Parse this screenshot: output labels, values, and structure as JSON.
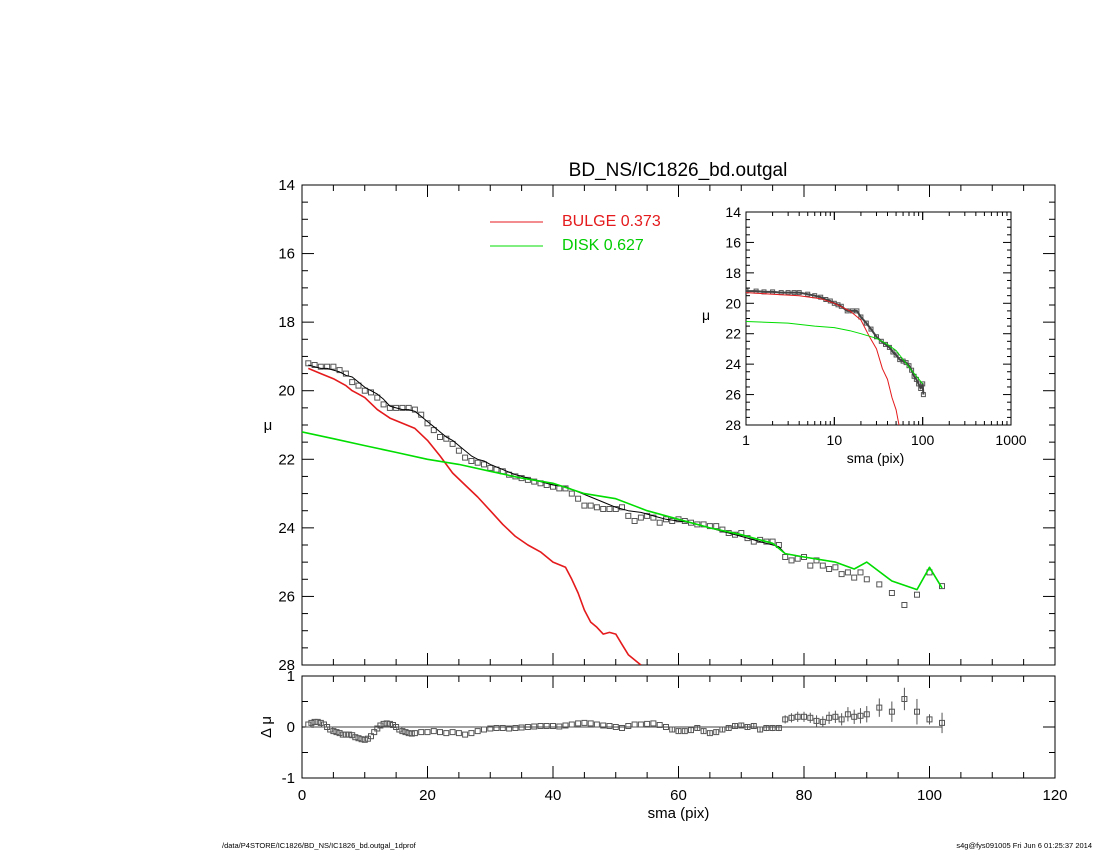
{
  "chart_data": {
    "title": "BD_NS/IC1826_bd.outgal",
    "footer_left": "/data/P4STORE/IC1826/BD_NS/IC1826_bd.outgal_1dprof",
    "footer_right": "s4g@fys091005  Fri Jun  6 01:25:37 2014",
    "colors": {
      "bulge": "#e41a1c",
      "disk": "#00dd00",
      "data": "#555555",
      "total": "#000000"
    },
    "main": {
      "type": "line",
      "xlabel": "sma (pix)",
      "ylabel": "μ",
      "xlim": [
        0,
        120
      ],
      "ylim": [
        28,
        14
      ],
      "xticks": [
        "0",
        "20",
        "40",
        "60",
        "80",
        "100",
        "120"
      ],
      "yticks": [
        "14",
        "16",
        "18",
        "20",
        "22",
        "24",
        "26",
        "28"
      ],
      "legend": [
        {
          "label": "BULGE  0.373",
          "series": "bulge"
        },
        {
          "label": "DISK  0.627",
          "series": "disk"
        }
      ],
      "series": [
        {
          "name": "BULGE",
          "x": [
            1,
            3,
            5,
            7,
            8,
            9,
            10,
            12,
            14,
            16,
            18,
            20,
            22,
            24,
            26,
            28,
            30,
            32,
            34,
            36,
            38,
            40,
            42,
            43,
            44,
            45,
            46,
            47,
            48,
            49,
            50,
            51,
            52,
            53,
            54
          ],
          "y": [
            19.35,
            19.5,
            19.65,
            19.85,
            20.0,
            20.1,
            20.2,
            20.55,
            20.8,
            20.95,
            21.1,
            21.45,
            21.9,
            22.4,
            22.75,
            23.1,
            23.5,
            23.9,
            24.25,
            24.5,
            24.7,
            25.0,
            25.15,
            25.5,
            25.9,
            26.4,
            26.75,
            26.9,
            27.1,
            27.05,
            27.1,
            27.4,
            27.7,
            27.85,
            28.0
          ]
        },
        {
          "name": "DISK",
          "x": [
            0,
            5,
            10,
            15,
            20,
            25,
            30,
            35,
            40,
            45,
            50,
            55,
            60,
            65,
            70,
            75,
            77,
            80,
            85,
            88,
            90,
            94,
            98,
            100,
            102
          ],
          "y": [
            21.2,
            21.4,
            21.6,
            21.8,
            22.0,
            22.15,
            22.35,
            22.55,
            22.7,
            23.0,
            23.15,
            23.5,
            23.75,
            24.0,
            24.2,
            24.45,
            24.75,
            24.85,
            25.0,
            25.2,
            25.0,
            25.55,
            25.8,
            25.15,
            25.75
          ]
        },
        {
          "name": "TOTAL",
          "x": [
            1,
            2,
            3,
            4,
            5,
            6,
            7,
            8,
            9,
            10,
            11,
            12,
            13,
            14,
            15,
            16,
            17,
            18,
            19,
            20,
            21,
            22,
            23,
            24,
            25,
            26,
            27,
            28,
            29,
            30,
            32,
            34,
            36,
            38,
            40,
            42,
            44,
            46,
            48,
            50,
            52,
            54,
            56,
            58,
            60,
            62,
            64,
            66,
            68,
            70,
            72,
            74,
            76,
            77,
            80,
            85,
            88,
            90,
            94,
            98,
            100,
            102
          ],
          "y": [
            19.25,
            19.3,
            19.35,
            19.35,
            19.4,
            19.45,
            19.55,
            19.6,
            19.75,
            19.9,
            20.0,
            20.1,
            20.25,
            20.45,
            20.5,
            20.55,
            20.55,
            20.6,
            20.75,
            20.9,
            21.05,
            21.2,
            21.35,
            21.45,
            21.6,
            21.75,
            21.9,
            22.0,
            22.05,
            22.15,
            22.3,
            22.45,
            22.55,
            22.65,
            22.75,
            22.8,
            22.95,
            23.1,
            23.25,
            23.4,
            23.5,
            23.55,
            23.65,
            23.75,
            23.8,
            23.85,
            23.95,
            24.05,
            24.15,
            24.25,
            24.35,
            24.45,
            24.55,
            24.75,
            24.85,
            25.0,
            25.2,
            25.0,
            25.55,
            25.8,
            25.15,
            25.75
          ]
        },
        {
          "name": "DATA",
          "x": [
            1,
            2,
            3,
            4,
            5,
            6,
            7,
            8,
            9,
            10,
            11,
            12,
            13,
            14,
            15,
            16,
            17,
            18,
            19,
            20,
            21,
            22,
            23,
            24,
            25,
            26,
            27,
            28,
            29,
            30,
            31,
            32,
            33,
            34,
            35,
            36,
            37,
            38,
            39,
            40,
            41,
            42,
            43,
            44,
            45,
            46,
            47,
            48,
            49,
            50,
            51,
            52,
            53,
            54,
            55,
            56,
            57,
            58,
            59,
            60,
            61,
            62,
            63,
            64,
            65,
            66,
            67,
            68,
            69,
            70,
            71,
            72,
            73,
            74,
            75,
            76,
            77,
            78,
            79,
            80,
            81,
            82,
            83,
            84,
            85,
            86,
            87,
            88,
            89,
            90,
            92,
            94,
            96,
            98,
            100,
            102
          ],
          "y": [
            19.2,
            19.25,
            19.3,
            19.3,
            19.3,
            19.4,
            19.5,
            19.75,
            19.85,
            20.0,
            20.05,
            20.2,
            20.4,
            20.5,
            20.5,
            20.5,
            20.5,
            20.55,
            20.7,
            20.95,
            21.15,
            21.35,
            21.4,
            21.55,
            21.75,
            21.95,
            22.05,
            22.1,
            22.15,
            22.25,
            22.3,
            22.35,
            22.45,
            22.5,
            22.55,
            22.6,
            22.65,
            22.7,
            22.75,
            22.8,
            22.85,
            22.85,
            23.0,
            23.15,
            23.35,
            23.35,
            23.4,
            23.45,
            23.45,
            23.45,
            23.4,
            23.65,
            23.8,
            23.7,
            23.65,
            23.7,
            23.85,
            23.75,
            23.8,
            23.75,
            23.8,
            23.85,
            23.9,
            23.9,
            23.95,
            23.95,
            24.05,
            24.15,
            24.2,
            24.15,
            24.3,
            24.4,
            24.35,
            24.4,
            24.4,
            24.5,
            24.85,
            24.95,
            24.9,
            24.85,
            25.1,
            24.95,
            25.1,
            25.2,
            25.15,
            25.35,
            25.3,
            25.45,
            25.3,
            25.5,
            25.65,
            25.9,
            26.25,
            25.95,
            25.3,
            25.7
          ]
        }
      ]
    },
    "inset": {
      "type": "line",
      "xlabel": "sma (pix)",
      "ylabel": "μ",
      "xscale": "log",
      "xlim": [
        1,
        1000
      ],
      "ylim": [
        28,
        14
      ],
      "xticks": [
        "1",
        "10",
        "100",
        "1000"
      ],
      "yticks": [
        "14",
        "16",
        "18",
        "20",
        "22",
        "24",
        "26",
        "28"
      ],
      "series": [
        {
          "name": "BULGE",
          "x": [
            1,
            2,
            4,
            7,
            10,
            15,
            20,
            25,
            30,
            35,
            40,
            45,
            50,
            54
          ],
          "y": [
            19.3,
            19.4,
            19.5,
            19.7,
            20.0,
            20.5,
            21.1,
            22.2,
            23.0,
            24.3,
            25.0,
            26.2,
            27.0,
            28.0
          ]
        },
        {
          "name": "DISK",
          "x": [
            1,
            3,
            6,
            10,
            15,
            20,
            30,
            40,
            50,
            70,
            100
          ],
          "y": [
            21.2,
            21.3,
            21.5,
            21.6,
            21.8,
            22.0,
            22.3,
            22.7,
            23.1,
            24.2,
            25.3
          ]
        },
        {
          "name": "DATA",
          "x": [
            1,
            1.3,
            1.6,
            2,
            2.5,
            3,
            3.5,
            4,
            5,
            6,
            7,
            8,
            9,
            10,
            11,
            12,
            14,
            16,
            18,
            20,
            23,
            26,
            30,
            34,
            38,
            42,
            46,
            50,
            55,
            60,
            65,
            70,
            75,
            80,
            85,
            90,
            95,
            100,
            102
          ],
          "y": [
            19.2,
            19.2,
            19.25,
            19.25,
            19.3,
            19.3,
            19.3,
            19.3,
            19.4,
            19.5,
            19.6,
            19.75,
            19.85,
            20.0,
            20.1,
            20.2,
            20.5,
            20.5,
            20.5,
            20.9,
            21.3,
            21.7,
            22.2,
            22.5,
            22.7,
            22.9,
            23.2,
            23.4,
            23.7,
            23.8,
            23.9,
            24.1,
            24.4,
            24.8,
            25.0,
            25.3,
            25.6,
            25.3,
            26.0
          ]
        }
      ]
    },
    "residual": {
      "type": "scatter",
      "xlabel": "sma (pix)",
      "ylabel": "Δ μ",
      "xlim": [
        0,
        120
      ],
      "ylim": [
        -1,
        1
      ],
      "yticks": [
        "1",
        "0",
        "-1"
      ],
      "x": [
        1,
        1.5,
        2,
        2.5,
        3,
        3.5,
        4,
        4.5,
        5,
        5.5,
        6,
        6.5,
        7,
        7.5,
        8,
        8.5,
        9,
        9.5,
        10,
        10.5,
        11,
        11.5,
        12,
        12.5,
        13,
        13.5,
        14,
        14.5,
        15,
        15.5,
        16,
        16.5,
        17,
        17.5,
        18,
        19,
        20,
        21,
        22,
        23,
        24,
        25,
        26,
        27,
        28,
        29,
        30,
        31,
        32,
        33,
        34,
        35,
        36,
        37,
        38,
        39,
        40,
        41,
        42,
        43,
        44,
        45,
        46,
        47,
        48,
        49,
        50,
        51,
        52,
        53,
        54,
        55,
        56,
        57,
        58,
        59,
        60,
        61,
        62,
        63,
        64,
        65,
        66,
        67,
        68,
        69,
        70,
        71,
        72,
        73,
        74,
        75,
        76,
        77,
        78,
        79,
        80,
        81,
        82,
        83,
        84,
        85,
        86,
        87,
        88,
        89,
        90,
        92,
        94,
        96,
        98,
        100,
        102
      ],
      "y": [
        0.05,
        0.08,
        0.1,
        0.1,
        0.08,
        0.05,
        0.0,
        -0.05,
        -0.08,
        -0.1,
        -0.12,
        -0.15,
        -0.15,
        -0.15,
        -0.16,
        -0.2,
        -0.22,
        -0.24,
        -0.25,
        -0.23,
        -0.18,
        -0.1,
        -0.03,
        0.03,
        0.06,
        0.07,
        0.06,
        0.04,
        0.0,
        -0.05,
        -0.08,
        -0.1,
        -0.12,
        -0.13,
        -0.12,
        -0.1,
        -0.1,
        -0.08,
        -0.1,
        -0.12,
        -0.1,
        -0.12,
        -0.15,
        -0.12,
        -0.08,
        -0.05,
        -0.03,
        -0.02,
        -0.02,
        -0.03,
        -0.02,
        -0.01,
        0.0,
        0.01,
        0.02,
        0.02,
        0.02,
        0.01,
        0.03,
        0.05,
        0.07,
        0.08,
        0.07,
        0.05,
        0.03,
        0.02,
        0.0,
        -0.02,
        0.02,
        0.05,
        0.05,
        0.06,
        0.07,
        0.04,
        0.0,
        -0.05,
        -0.08,
        -0.08,
        -0.06,
        -0.02,
        -0.08,
        -0.12,
        -0.1,
        -0.05,
        -0.02,
        0.02,
        0.03,
        0.0,
        0.02,
        -0.05,
        -0.02,
        -0.02,
        -0.02,
        0.15,
        0.18,
        0.2,
        0.2,
        0.18,
        0.12,
        0.1,
        0.18,
        0.2,
        0.15,
        0.25,
        0.2,
        0.22,
        0.25,
        0.38,
        0.3,
        0.55,
        0.3,
        0.15,
        0.08
      ],
      "err": [
        0.02,
        0.02,
        0.02,
        0.02,
        0.02,
        0.02,
        0.02,
        0.02,
        0.02,
        0.02,
        0.02,
        0.02,
        0.02,
        0.02,
        0.02,
        0.02,
        0.02,
        0.02,
        0.02,
        0.02,
        0.02,
        0.02,
        0.02,
        0.02,
        0.02,
        0.02,
        0.02,
        0.02,
        0.02,
        0.02,
        0.02,
        0.02,
        0.02,
        0.02,
        0.02,
        0.02,
        0.02,
        0.02,
        0.02,
        0.02,
        0.02,
        0.02,
        0.02,
        0.02,
        0.02,
        0.02,
        0.02,
        0.02,
        0.02,
        0.02,
        0.02,
        0.02,
        0.02,
        0.02,
        0.02,
        0.02,
        0.02,
        0.02,
        0.02,
        0.02,
        0.02,
        0.02,
        0.02,
        0.02,
        0.02,
        0.02,
        0.02,
        0.02,
        0.03,
        0.03,
        0.03,
        0.03,
        0.03,
        0.03,
        0.03,
        0.04,
        0.04,
        0.04,
        0.04,
        0.04,
        0.04,
        0.04,
        0.04,
        0.05,
        0.05,
        0.05,
        0.05,
        0.05,
        0.05,
        0.06,
        0.06,
        0.06,
        0.06,
        0.08,
        0.09,
        0.1,
        0.1,
        0.1,
        0.11,
        0.11,
        0.12,
        0.12,
        0.12,
        0.14,
        0.14,
        0.15,
        0.16,
        0.18,
        0.2,
        0.22,
        0.25,
        0.1,
        0.2
      ]
    }
  }
}
